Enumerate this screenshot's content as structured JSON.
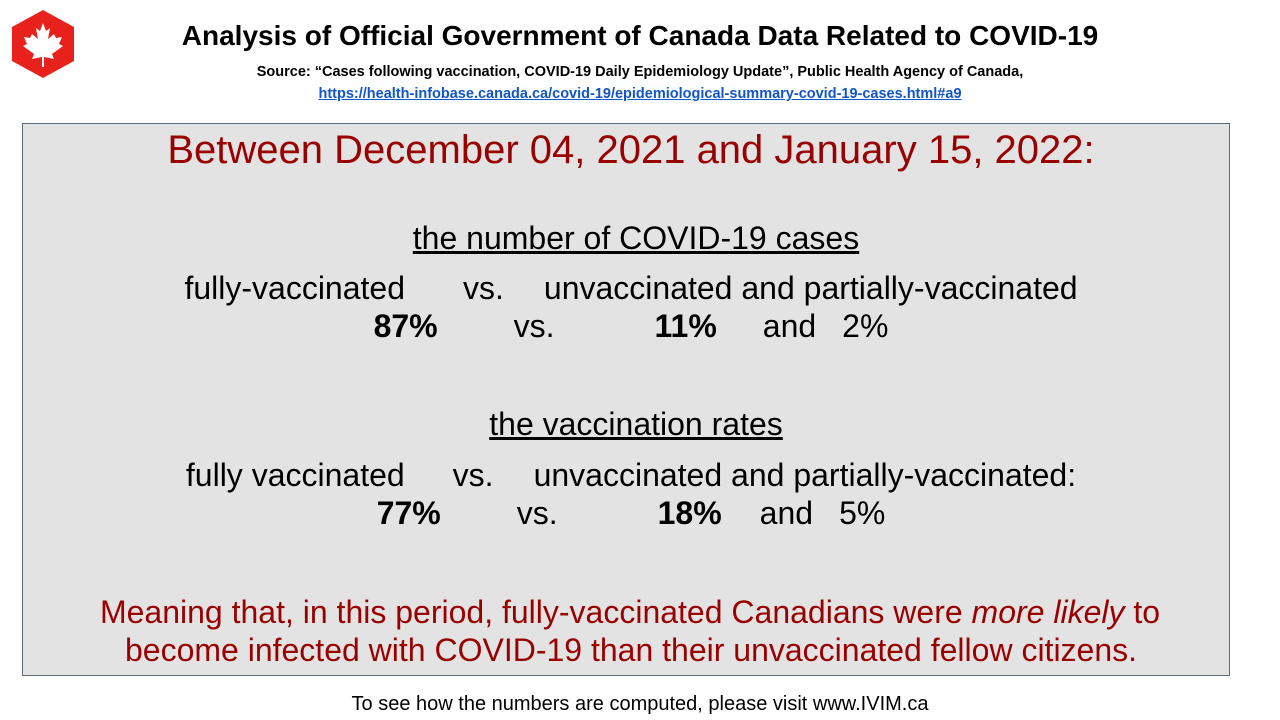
{
  "header": {
    "title": "Analysis of Official Government of Canada Data Related to COVID-19",
    "source": "Source: “Cases following vaccination, COVID-19 Daily Epidemiology Update”, Public Health Agency of Canada,",
    "link": "https://health-infobase.canada.ca/covid-19/epidemiological-summary-covid-19-cases.html#a9"
  },
  "panel": {
    "period": "Between December 04, 2021 and January 15, 2022:",
    "cases": {
      "title": "the number of COVID-19 cases",
      "label_full": "fully-vaccinated",
      "vs": "vs.",
      "label_other": "unvaccinated and partially-vaccinated",
      "value_full": "87%",
      "value_unvax": "11%",
      "and": "and",
      "value_partial": "2%"
    },
    "rates": {
      "title": "the vaccination rates",
      "label_full": "fully vaccinated",
      "vs": "vs.",
      "label_other": "unvaccinated and partially-vaccinated:",
      "value_full": "77%",
      "value_unvax": "18%",
      "and": "and",
      "value_partial": "5%"
    },
    "meaning_before": "Meaning that, in this period, fully-vaccinated Canadians were ",
    "meaning_emph": "more likely",
    "meaning_after": " to",
    "meaning_line2": "become infected with COVID-19 than their unvaccinated fellow citizens."
  },
  "footer": {
    "text": "To see how the numbers are computed, please visit www.IVIM.ca"
  },
  "colors": {
    "logo_red": "#e8211c",
    "highlight_red": "#990000",
    "link_blue": "#1155cc",
    "panel_bg": "#e3e3e3"
  }
}
